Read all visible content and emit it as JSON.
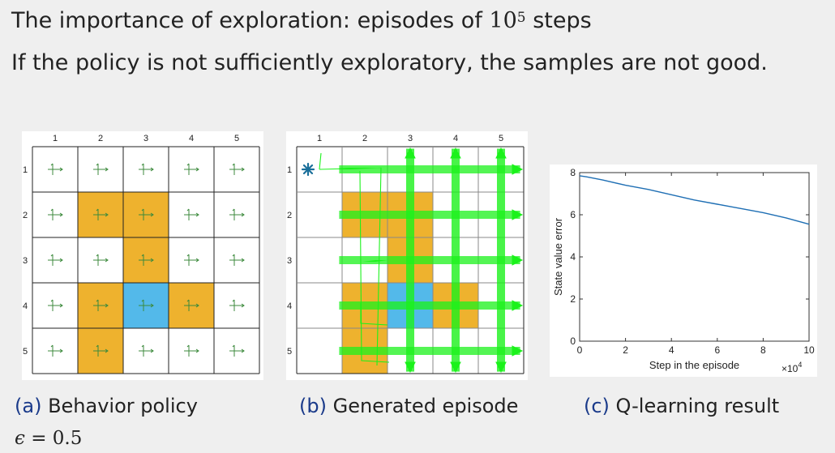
{
  "slide": {
    "title_text": "The importance of exploration: episodes of ",
    "title_math_base": "10",
    "title_math_exp": "5",
    "title_suffix": " steps",
    "subtitle": "If the policy is not sufficiently exploratory, the samples are not good."
  },
  "grid": {
    "col_labels": [
      "1",
      "2",
      "3",
      "4",
      "5"
    ],
    "row_labels": [
      "1",
      "2",
      "3",
      "4",
      "5"
    ],
    "forbidden_cells": [
      [
        2,
        2
      ],
      [
        2,
        3
      ],
      [
        3,
        3
      ],
      [
        4,
        2
      ],
      [
        4,
        4
      ],
      [
        5,
        2
      ]
    ],
    "target_cell": [
      4,
      3
    ],
    "start_cell": [
      1,
      1
    ],
    "colors": {
      "forbidden": "#eeb22e",
      "target": "#53b9ea",
      "grid_line": "#222222",
      "light_line": "#888888",
      "arrow": "#3c8a3c",
      "trajectory": "#1bf21b",
      "start_marker": "#1a6f9a"
    }
  },
  "captions": {
    "a": {
      "tag": "(a)",
      "text": " Behavior policy"
    },
    "b": {
      "tag": "(b)",
      "text": " Generated episode"
    },
    "c": {
      "tag": "(c)",
      "text": " Q-learning result"
    }
  },
  "epsilon": {
    "symbol": "ϵ",
    "equals": " = 0.5"
  },
  "chart_data": {
    "type": "line",
    "xlabel": "Step in the episode",
    "ylabel": "State value error",
    "x_multiplier": "×10",
    "x_multiplier_exp": "4",
    "xlim": [
      0,
      10
    ],
    "ylim": [
      0,
      8
    ],
    "x_ticks": [
      "0",
      "2",
      "4",
      "6",
      "8",
      "10"
    ],
    "y_ticks": [
      "0",
      "2",
      "4",
      "6",
      "8"
    ],
    "series": [
      {
        "color": "#1f6fb4",
        "x": [
          0,
          0.3,
          1,
          2,
          3,
          4,
          5,
          6,
          7,
          8,
          9,
          9.5,
          10
        ],
        "y": [
          7.85,
          7.8,
          7.65,
          7.4,
          7.2,
          6.95,
          6.7,
          6.5,
          6.3,
          6.1,
          5.85,
          5.7,
          5.55
        ]
      }
    ]
  }
}
